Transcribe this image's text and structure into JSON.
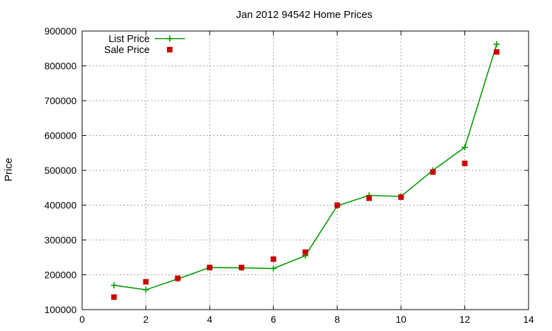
{
  "chart_data": {
    "type": "line",
    "title": "Jan 2012 94542 Home Prices",
    "xlabel": "",
    "ylabel": "Price",
    "xlim": [
      0,
      14
    ],
    "ylim": [
      100000,
      900000
    ],
    "x_ticks": [
      0,
      2,
      4,
      6,
      8,
      10,
      12,
      14
    ],
    "y_ticks": [
      100000,
      200000,
      300000,
      400000,
      500000,
      600000,
      700000,
      800000,
      900000
    ],
    "grid": true,
    "legend_position": "top-left",
    "series": [
      {
        "name": "List Price",
        "style": "line-with-plus-markers",
        "color": "#009900",
        "x": [
          1,
          2,
          3,
          4,
          5,
          6,
          7,
          8,
          9,
          10,
          11,
          12,
          13
        ],
        "y": [
          170000,
          157000,
          188000,
          221000,
          220000,
          218000,
          255000,
          398000,
          428000,
          425000,
          500000,
          566000,
          862000
        ]
      },
      {
        "name": "Sale Price",
        "style": "square-markers",
        "color": "#cc0000",
        "x": [
          1,
          2,
          3,
          4,
          5,
          6,
          7,
          8,
          9,
          10,
          11,
          12,
          13
        ],
        "y": [
          136000,
          180000,
          190000,
          221000,
          221000,
          245000,
          265000,
          400000,
          420000,
          423000,
          495000,
          520000,
          840000
        ]
      }
    ]
  }
}
